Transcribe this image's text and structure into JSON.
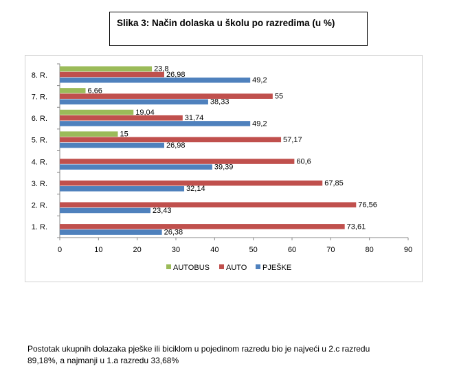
{
  "title": "Slika 3: Način dolaska u školu  po razredima  (u %)",
  "caption_line1": "Postotak ukupnih dolazaka pješke ili biciklom u pojedinom razredu bio je najveći u 2.c razredu",
  "caption_line2": "89,18%, a najmanji u 1.a razredu 33,68%",
  "chart_data": {
    "type": "bar",
    "orientation": "horizontal",
    "categories": [
      "1. R.",
      "2. R.",
      "3. R.",
      "4. R.",
      "5. R.",
      "6. R.",
      "7. R.",
      "8. R."
    ],
    "series": [
      {
        "name": "AUTOBUS",
        "color": "#9bbb59",
        "values": [
          null,
          null,
          null,
          null,
          15,
          19.04,
          6.66,
          23.8
        ],
        "labels": [
          "",
          "",
          "",
          "",
          "15",
          "19,04",
          "6,66",
          "23,8"
        ]
      },
      {
        "name": "AUTO",
        "color": "#c0504d",
        "values": [
          73.61,
          76.56,
          67.85,
          60.6,
          57.17,
          31.74,
          55,
          26.98
        ],
        "labels": [
          "73,61",
          "76,56",
          "67,85",
          "60,6",
          "57,17",
          "31,74",
          "55",
          "26,98"
        ]
      },
      {
        "name": "PJEŠKE",
        "color": "#4f81bd",
        "values": [
          26.38,
          23.43,
          32.14,
          39.39,
          26.98,
          49.2,
          38.33,
          49.2
        ],
        "labels": [
          "26,38",
          "23,43",
          "32,14",
          "39,39",
          "26,98",
          "49,2",
          "38,33",
          "49,2"
        ]
      }
    ],
    "xlim": [
      0,
      90
    ],
    "xticks": [
      "0",
      "10",
      "20",
      "30",
      "40",
      "50",
      "60",
      "70",
      "80",
      "90"
    ],
    "grid": false,
    "legend": "bottom",
    "legend_order": [
      "AUTOBUS",
      "AUTO",
      "PJEŠKE"
    ]
  }
}
